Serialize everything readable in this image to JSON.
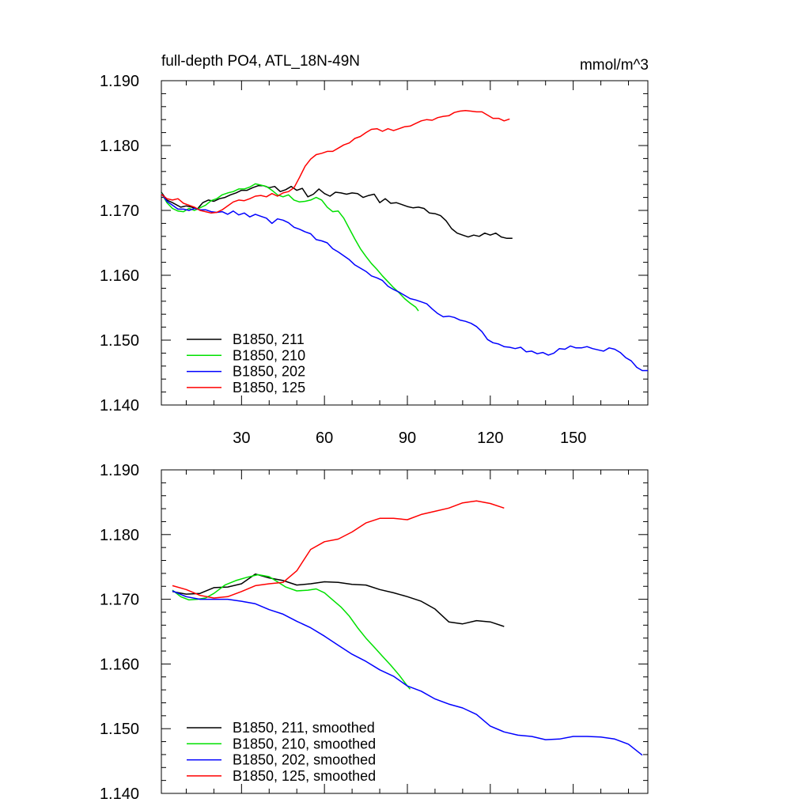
{
  "chart_data": [
    {
      "type": "line",
      "title": "full-depth PO4, ATL_18N-49N",
      "units": "mmol/m^3",
      "xlim": [
        1,
        177
      ],
      "ylim": [
        1.14,
        1.19
      ],
      "xticks": [
        30,
        60,
        90,
        120,
        150
      ],
      "xtick_labels": [
        "30",
        "60",
        "90",
        "120",
        "150"
      ],
      "yticks": [
        1.14,
        1.15,
        1.16,
        1.17,
        1.18,
        1.19
      ],
      "ytick_labels": [
        "1.140",
        "1.150",
        "1.160",
        "1.170",
        "1.180",
        "1.190"
      ],
      "legend_position": "bottom-left",
      "grid": false,
      "series": [
        {
          "name": "B1850, 211",
          "color": "#000000",
          "x": [
            1,
            3,
            5,
            8,
            10,
            12,
            14,
            16,
            18,
            20,
            22,
            24,
            26,
            28,
            30,
            32,
            34,
            36,
            38,
            40,
            42,
            44,
            46,
            48,
            50,
            52,
            54,
            56,
            58,
            60,
            62,
            64,
            66,
            68,
            70,
            72,
            74,
            76,
            78,
            80,
            82,
            84,
            86,
            88,
            90,
            92,
            94,
            96,
            98,
            100,
            102,
            104,
            106,
            108,
            110,
            112,
            114,
            116,
            118,
            120,
            122,
            124,
            126,
            128
          ],
          "y": [
            1.1728,
            1.1716,
            1.1712,
            1.1705,
            1.1707,
            1.1705,
            1.1702,
            1.1712,
            1.1716,
            1.1714,
            1.1718,
            1.172,
            1.1724,
            1.1727,
            1.1731,
            1.1731,
            1.1735,
            1.1738,
            1.1738,
            1.1735,
            1.1737,
            1.1729,
            1.1732,
            1.1737,
            1.1731,
            1.1734,
            1.1721,
            1.1725,
            1.1733,
            1.1726,
            1.1722,
            1.1728,
            1.1727,
            1.1725,
            1.1727,
            1.1726,
            1.172,
            1.1723,
            1.1725,
            1.1712,
            1.1718,
            1.1711,
            1.1712,
            1.1709,
            1.1706,
            1.1704,
            1.1705,
            1.1703,
            1.1696,
            1.1695,
            1.1692,
            1.1684,
            1.1672,
            1.1665,
            1.1662,
            1.1659,
            1.1662,
            1.166,
            1.1665,
            1.1662,
            1.1665,
            1.1659,
            1.1657,
            1.1657
          ]
        },
        {
          "name": "B1850, 210",
          "color": "#00e000",
          "x": [
            1,
            3,
            5,
            7,
            9,
            11,
            13,
            15,
            17,
            19,
            21,
            23,
            25,
            27,
            29,
            31,
            33,
            35,
            37,
            39,
            41,
            43,
            45,
            47,
            49,
            51,
            53,
            55,
            57,
            59,
            61,
            63,
            65,
            67,
            69,
            71,
            73,
            75,
            77,
            79,
            81,
            83,
            85,
            87,
            89,
            91,
            93,
            94
          ],
          "y": [
            1.1727,
            1.1712,
            1.1703,
            1.1699,
            1.1698,
            1.1703,
            1.17,
            1.1704,
            1.1708,
            1.1715,
            1.1718,
            1.1724,
            1.1727,
            1.1729,
            1.1733,
            1.1733,
            1.1736,
            1.1741,
            1.1739,
            1.1737,
            1.1731,
            1.1724,
            1.1721,
            1.1724,
            1.1716,
            1.1713,
            1.1714,
            1.1716,
            1.172,
            1.1716,
            1.1705,
            1.1698,
            1.1699,
            1.1688,
            1.1672,
            1.1656,
            1.1641,
            1.1629,
            1.1618,
            1.1609,
            1.1599,
            1.159,
            1.1581,
            1.1573,
            1.1564,
            1.1557,
            1.1551,
            1.1545
          ]
        },
        {
          "name": "B1850, 202",
          "color": "#0000ff",
          "x": [
            1,
            3,
            5,
            7,
            9,
            11,
            13,
            15,
            17,
            19,
            21,
            23,
            25,
            27,
            29,
            31,
            33,
            35,
            37,
            39,
            41,
            43,
            45,
            47,
            49,
            51,
            53,
            55,
            57,
            59,
            61,
            63,
            65,
            67,
            69,
            71,
            73,
            75,
            77,
            79,
            81,
            83,
            85,
            87,
            89,
            91,
            93,
            95,
            97,
            99,
            101,
            103,
            105,
            107,
            109,
            111,
            113,
            115,
            117,
            119,
            121,
            123,
            125,
            127,
            129,
            131,
            133,
            135,
            137,
            139,
            141,
            143,
            145,
            147,
            149,
            151,
            153,
            155,
            157,
            159,
            161,
            163,
            165,
            167,
            169,
            171,
            173,
            175,
            177
          ],
          "y": [
            1.1726,
            1.1714,
            1.1708,
            1.1702,
            1.1702,
            1.17,
            1.1703,
            1.1701,
            1.1701,
            1.1698,
            1.1697,
            1.1698,
            1.1694,
            1.1699,
            1.1693,
            1.1696,
            1.169,
            1.1694,
            1.1691,
            1.1688,
            1.168,
            1.1687,
            1.1685,
            1.1681,
            1.1674,
            1.1671,
            1.1667,
            1.1664,
            1.1655,
            1.1653,
            1.165,
            1.1641,
            1.1636,
            1.163,
            1.1624,
            1.1616,
            1.1611,
            1.1606,
            1.1599,
            1.1596,
            1.1592,
            1.1583,
            1.1578,
            1.1574,
            1.1569,
            1.1564,
            1.1562,
            1.1559,
            1.1556,
            1.1548,
            1.1541,
            1.1536,
            1.1537,
            1.1535,
            1.1531,
            1.1529,
            1.1526,
            1.1521,
            1.1513,
            1.1501,
            1.1496,
            1.1494,
            1.149,
            1.1489,
            1.1487,
            1.1489,
            1.1482,
            1.1483,
            1.1479,
            1.1481,
            1.1477,
            1.148,
            1.1487,
            1.1486,
            1.1491,
            1.1488,
            1.1488,
            1.149,
            1.1487,
            1.1485,
            1.1483,
            1.1488,
            1.1486,
            1.1481,
            1.1473,
            1.1468,
            1.1458,
            1.1453,
            1.1453
          ]
        },
        {
          "name": "B1850, 125",
          "color": "#ff0000",
          "x": [
            1,
            3,
            5,
            7,
            9,
            11,
            13,
            15,
            17,
            19,
            21,
            23,
            25,
            27,
            29,
            31,
            33,
            35,
            37,
            39,
            41,
            43,
            45,
            47,
            49,
            51,
            53,
            55,
            57,
            59,
            61,
            63,
            65,
            67,
            69,
            71,
            73,
            75,
            77,
            79,
            81,
            83,
            85,
            87,
            89,
            91,
            93,
            95,
            97,
            99,
            101,
            103,
            105,
            107,
            109,
            111,
            113,
            115,
            117,
            119,
            121,
            123,
            125,
            127
          ],
          "y": [
            1.1725,
            1.1718,
            1.1716,
            1.1718,
            1.1711,
            1.1708,
            1.1705,
            1.17,
            1.1698,
            1.1696,
            1.1697,
            1.1701,
            1.1707,
            1.1713,
            1.1716,
            1.1715,
            1.1718,
            1.1722,
            1.1723,
            1.1721,
            1.1726,
            1.1722,
            1.1727,
            1.1729,
            1.1735,
            1.1751,
            1.1768,
            1.1779,
            1.1786,
            1.1788,
            1.1791,
            1.1791,
            1.1796,
            1.1801,
            1.1804,
            1.1811,
            1.1814,
            1.182,
            1.1825,
            1.1826,
            1.1822,
            1.1826,
            1.1823,
            1.1826,
            1.1829,
            1.183,
            1.1834,
            1.1838,
            1.184,
            1.1839,
            1.1843,
            1.1845,
            1.1846,
            1.1851,
            1.1853,
            1.1854,
            1.1853,
            1.1852,
            1.1852,
            1.1847,
            1.1842,
            1.1842,
            1.1838,
            1.1841
          ]
        }
      ]
    },
    {
      "type": "line",
      "title": "",
      "xlim": [
        1,
        177
      ],
      "ylim": [
        1.14,
        1.19
      ],
      "xticks": [
        30,
        60,
        90,
        120,
        150
      ],
      "xtick_labels": [],
      "yticks": [
        1.14,
        1.15,
        1.16,
        1.17,
        1.18,
        1.19
      ],
      "ytick_labels": [
        "1.140",
        "1.150",
        "1.160",
        "1.170",
        "1.180",
        "1.190"
      ],
      "legend_position": "bottom-left",
      "grid": false,
      "series": [
        {
          "name": "B1850, 211, smoothed",
          "color": "#000000",
          "x": [
            5,
            10,
            15,
            20,
            25,
            30,
            35,
            40,
            45,
            50,
            55,
            60,
            65,
            70,
            75,
            80,
            85,
            90,
            95,
            100,
            105,
            110,
            115,
            120,
            125
          ],
          "y": [
            1.1712,
            1.1708,
            1.1709,
            1.1718,
            1.1719,
            1.1724,
            1.1739,
            1.1733,
            1.1729,
            1.1722,
            1.1724,
            1.1727,
            1.1726,
            1.1723,
            1.1722,
            1.1715,
            1.171,
            1.1704,
            1.1697,
            1.1685,
            1.1665,
            1.1662,
            1.1667,
            1.1665,
            1.1658
          ]
        },
        {
          "name": "B1850, 210, smoothed",
          "color": "#00e000",
          "x": [
            5,
            8,
            11,
            14,
            17,
            20,
            24,
            28,
            32,
            36,
            40,
            43,
            46,
            50,
            54,
            57,
            60,
            63,
            66,
            69,
            72,
            75,
            78,
            81,
            84,
            87,
            90,
            91
          ],
          "y": [
            1.1714,
            1.1704,
            1.1699,
            1.17,
            1.1702,
            1.1709,
            1.1722,
            1.1729,
            1.1734,
            1.1738,
            1.1735,
            1.1727,
            1.1719,
            1.1713,
            1.1714,
            1.1716,
            1.171,
            1.1699,
            1.1688,
            1.1674,
            1.1656,
            1.164,
            1.1626,
            1.1612,
            1.1598,
            1.1583,
            1.1566,
            1.1561
          ]
        },
        {
          "name": "B1850, 202, smoothed",
          "color": "#0000ff",
          "x": [
            5,
            10,
            15,
            20,
            25,
            30,
            35,
            40,
            45,
            50,
            55,
            60,
            65,
            70,
            75,
            80,
            85,
            90,
            95,
            100,
            105,
            110,
            115,
            120,
            125,
            130,
            135,
            140,
            145,
            150,
            155,
            160,
            165,
            170,
            175
          ],
          "y": [
            1.1713,
            1.1704,
            1.17,
            1.17,
            1.17,
            1.1697,
            1.1693,
            1.1684,
            1.1677,
            1.1666,
            1.1656,
            1.1643,
            1.1629,
            1.1615,
            1.1604,
            1.1591,
            1.1581,
            1.1566,
            1.1558,
            1.1546,
            1.1538,
            1.1532,
            1.1522,
            1.1504,
            1.1495,
            1.149,
            1.1488,
            1.1483,
            1.1484,
            1.1488,
            1.1488,
            1.1487,
            1.1484,
            1.1476,
            1.1459
          ]
        },
        {
          "name": "B1850, 125, smoothed",
          "color": "#ff0000",
          "x": [
            5,
            10,
            15,
            20,
            25,
            30,
            35,
            40,
            45,
            50,
            55,
            60,
            65,
            70,
            75,
            80,
            85,
            90,
            95,
            100,
            105,
            110,
            115,
            120,
            125
          ],
          "y": [
            1.1721,
            1.1715,
            1.1706,
            1.1702,
            1.1704,
            1.1712,
            1.1721,
            1.1724,
            1.1726,
            1.1744,
            1.1777,
            1.1789,
            1.1793,
            1.1804,
            1.1818,
            1.1825,
            1.1825,
            1.1823,
            1.1831,
            1.1836,
            1.1841,
            1.1849,
            1.1852,
            1.1848,
            1.1841
          ]
        }
      ]
    }
  ]
}
